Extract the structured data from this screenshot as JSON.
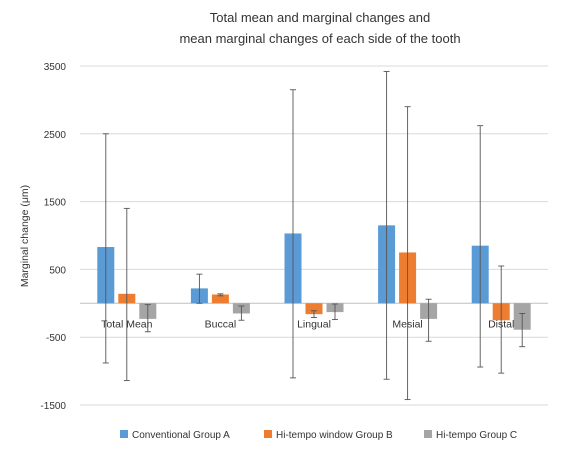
{
  "chart_data": {
    "type": "bar",
    "title_lines": [
      "Total mean and marginal changes and",
      "mean marginal changes of each side of the tooth"
    ],
    "xlabel": "",
    "ylabel": "Marginal change (μm)",
    "ylim": [
      -1500,
      3500
    ],
    "yticks": [
      -1500,
      -500,
      500,
      1500,
      2500,
      3500
    ],
    "grid": true,
    "legend_position": "bottom",
    "categories": [
      "Total Mean",
      "Buccal",
      "Lingual",
      "Mesial",
      "Distal"
    ],
    "series": [
      {
        "name": "Conventional Group A",
        "color": "#5b9bd5",
        "values": [
          830,
          220,
          1030,
          1150,
          850
        ],
        "error_high": [
          2500,
          430,
          3150,
          3420,
          2620
        ],
        "error_low": [
          -880,
          0,
          -1100,
          -1120,
          -940
        ]
      },
      {
        "name": "Hi-tempo window Group B",
        "color": "#ed7d31",
        "values": [
          140,
          130,
          -160,
          750,
          -250
        ],
        "error_high": [
          1400,
          140,
          -110,
          2900,
          550
        ],
        "error_low": [
          -1140,
          110,
          -210,
          -1420,
          -1030
        ]
      },
      {
        "name": "Hi-tempo Group C",
        "color": "#a5a5a5",
        "values": [
          -230,
          -150,
          -130,
          -230,
          -390
        ],
        "error_high": [
          -20,
          -40,
          -10,
          60,
          -150
        ],
        "error_low": [
          -420,
          -250,
          -240,
          -560,
          -640
        ]
      }
    ]
  }
}
